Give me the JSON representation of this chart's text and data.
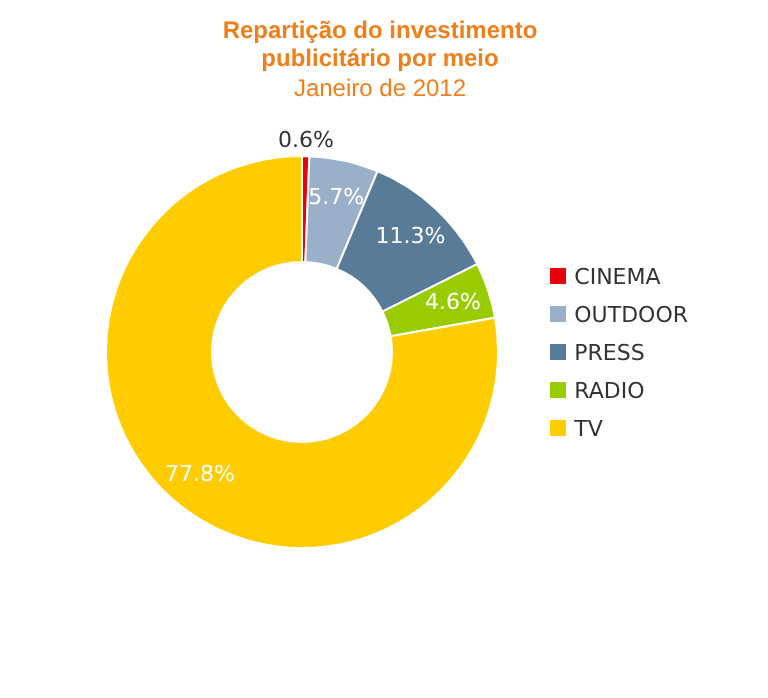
{
  "chart_data": {
    "type": "donut",
    "title": "Repartição do investimento publicitário por meio",
    "subtitle": "Janeiro de 2012",
    "categories": [
      "CINEMA",
      "OUTDOOR",
      "PRESS",
      "RADIO",
      "TV"
    ],
    "values": [
      0.6,
      5.7,
      11.3,
      4.6,
      77.8
    ],
    "value_labels": [
      "0.6%",
      "5.7%",
      "11.3%",
      "4.6%",
      "77.8%"
    ],
    "colors": [
      "#e8000b",
      "#9ab0c8",
      "#587b98",
      "#99cc00",
      "#ffcc00"
    ],
    "legend": "right"
  }
}
